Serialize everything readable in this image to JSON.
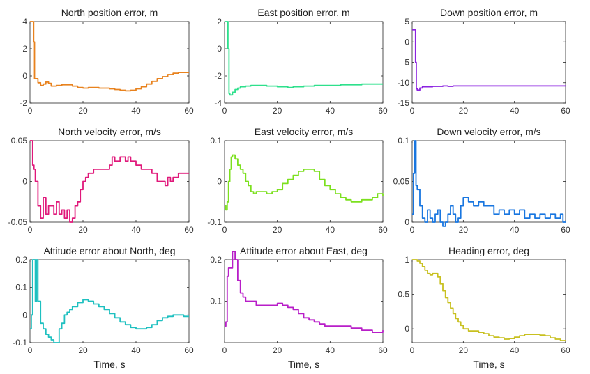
{
  "chart_data": [
    {
      "type": "line",
      "title": "North position error, m",
      "xlabel": "",
      "xlim": [
        0,
        60
      ],
      "ylim": [
        -2,
        4
      ],
      "xticks": [
        "0",
        "20",
        "40",
        "60"
      ],
      "yticks": [
        "-2",
        "0",
        "2",
        "4"
      ],
      "color": "#E8821E",
      "series": [
        {
          "name": "North position error",
          "x": [
            0,
            0.5,
            1,
            1.4,
            1.7,
            2,
            3,
            4,
            5,
            6,
            7,
            8,
            10,
            12,
            14,
            16,
            18,
            20,
            22,
            24,
            26,
            28,
            30,
            32,
            34,
            36,
            38,
            40,
            42,
            44,
            46,
            48,
            50,
            52,
            54,
            56,
            58,
            60
          ],
          "y": [
            4,
            4,
            4,
            2.5,
            -0.2,
            -0.2,
            -0.5,
            -0.7,
            -0.6,
            -0.45,
            -0.55,
            -0.75,
            -0.7,
            -0.65,
            -0.65,
            -0.75,
            -0.85,
            -0.9,
            -0.85,
            -0.85,
            -0.9,
            -0.9,
            -0.95,
            -1.0,
            -1.05,
            -1.1,
            -1.05,
            -0.95,
            -0.8,
            -0.6,
            -0.4,
            -0.2,
            -0.05,
            0.1,
            0.2,
            0.25,
            0.25,
            0.25
          ]
        }
      ]
    },
    {
      "type": "line",
      "title": "East position error, m",
      "xlabel": "",
      "xlim": [
        0,
        60
      ],
      "ylim": [
        -4,
        2
      ],
      "xticks": [
        "0",
        "20",
        "40",
        "60"
      ],
      "yticks": [
        "-4",
        "-2",
        "0",
        "2"
      ],
      "color": "#2EE08C",
      "series": [
        {
          "name": "East position error",
          "x": [
            0,
            0.5,
            1,
            1.3,
            1.7,
            2,
            3,
            4,
            5,
            6,
            8,
            10,
            12,
            14,
            16,
            18,
            20,
            22,
            24,
            26,
            28,
            30,
            32,
            34,
            36,
            38,
            40,
            42,
            44,
            46,
            48,
            50,
            52,
            54,
            56,
            58,
            60
          ],
          "y": [
            2,
            2,
            2,
            0,
            -3.3,
            -3.4,
            -3.2,
            -3.0,
            -2.9,
            -2.8,
            -2.75,
            -2.7,
            -2.7,
            -2.7,
            -2.75,
            -2.75,
            -2.8,
            -2.8,
            -2.85,
            -2.8,
            -2.8,
            -2.75,
            -2.75,
            -2.7,
            -2.7,
            -2.7,
            -2.7,
            -2.7,
            -2.65,
            -2.65,
            -2.65,
            -2.65,
            -2.6,
            -2.6,
            -2.6,
            -2.6,
            -2.6
          ]
        }
      ]
    },
    {
      "type": "line",
      "title": "Down position error, m",
      "xlabel": "",
      "xlim": [
        0,
        60
      ],
      "ylim": [
        -15,
        5
      ],
      "xticks": [
        "0",
        "20",
        "40",
        "60"
      ],
      "yticks": [
        "-15",
        "-10",
        "-5",
        "0",
        "5"
      ],
      "color": "#8B22E0",
      "series": [
        {
          "name": "Down position error",
          "x": [
            0,
            0.5,
            1,
            1.3,
            1.6,
            2,
            3,
            4,
            6,
            8,
            10,
            12,
            14,
            16,
            18,
            20,
            22,
            24,
            26,
            28,
            30,
            32,
            34,
            36,
            38,
            40,
            42,
            44,
            46,
            48,
            50,
            52,
            54,
            56,
            58,
            60
          ],
          "y": [
            3,
            3,
            3,
            -5,
            -11.5,
            -11.8,
            -11.3,
            -11.0,
            -11.0,
            -10.9,
            -10.9,
            -10.8,
            -10.9,
            -10.8,
            -10.8,
            -10.8,
            -10.8,
            -10.8,
            -10.8,
            -10.8,
            -10.8,
            -10.8,
            -10.8,
            -10.8,
            -10.8,
            -10.8,
            -10.8,
            -10.8,
            -10.8,
            -10.8,
            -10.8,
            -10.8,
            -10.8,
            -10.8,
            -10.8,
            -10.8
          ]
        }
      ]
    },
    {
      "type": "line",
      "title": "North velocity error, m/s",
      "xlabel": "",
      "xlim": [
        0,
        60
      ],
      "ylim": [
        -0.05,
        0.05
      ],
      "xticks": [
        "0",
        "20",
        "40",
        "60"
      ],
      "yticks": [
        "-0.05",
        "0",
        "0.05"
      ],
      "color": "#E0187A",
      "series": [
        {
          "name": "North velocity error",
          "x": [
            0,
            0.5,
            1,
            1.5,
            2,
            3,
            4,
            5,
            6,
            7,
            8,
            9,
            10,
            11,
            12,
            13,
            14,
            15,
            16,
            17,
            18,
            19,
            20,
            21,
            22,
            23,
            24,
            26,
            28,
            30,
            31,
            32,
            33,
            34,
            35,
            36,
            37,
            38,
            40,
            42,
            44,
            46,
            48,
            50,
            51,
            52,
            53,
            54,
            56,
            58,
            60
          ],
          "y": [
            0.05,
            0.05,
            0.02,
            0.015,
            0.0,
            -0.03,
            -0.045,
            -0.02,
            -0.04,
            -0.03,
            -0.03,
            -0.04,
            -0.025,
            -0.04,
            -0.035,
            -0.045,
            -0.035,
            -0.05,
            -0.045,
            -0.03,
            -0.025,
            -0.01,
            0.0,
            0.005,
            0.01,
            0.01,
            0.015,
            0.015,
            0.015,
            0.02,
            0.03,
            0.025,
            0.025,
            0.03,
            0.03,
            0.025,
            0.03,
            0.025,
            0.02,
            0.015,
            0.015,
            0.01,
            0.0,
            0.0,
            -0.005,
            0.005,
            0.0,
            0.005,
            0.01,
            0.01,
            0.01
          ]
        }
      ]
    },
    {
      "type": "line",
      "title": "East velocity error, m/s",
      "xlabel": "",
      "xlim": [
        0,
        60
      ],
      "ylim": [
        -0.1,
        0.1
      ],
      "xticks": [
        "0",
        "20",
        "40",
        "60"
      ],
      "yticks": [
        "-0.1",
        "0",
        "0.1"
      ],
      "color": "#7CE01E",
      "series": [
        {
          "name": "East velocity error",
          "x": [
            0,
            0.5,
            1,
            1.5,
            2,
            2.5,
            3,
            4,
            5,
            6,
            7,
            8,
            9,
            10,
            11,
            12,
            14,
            16,
            18,
            20,
            22,
            24,
            26,
            28,
            30,
            32,
            34,
            36,
            38,
            40,
            42,
            44,
            46,
            48,
            50,
            52,
            54,
            56,
            58,
            60
          ],
          "y": [
            -0.06,
            -0.07,
            -0.05,
            0.0,
            0.03,
            0.06,
            0.065,
            0.055,
            0.04,
            0.03,
            0.02,
            0.0,
            -0.01,
            -0.025,
            -0.03,
            -0.025,
            -0.025,
            -0.03,
            -0.025,
            -0.02,
            -0.005,
            0.005,
            0.015,
            0.025,
            0.03,
            0.03,
            0.025,
            0.005,
            -0.01,
            -0.02,
            -0.03,
            -0.04,
            -0.045,
            -0.05,
            -0.05,
            -0.045,
            -0.045,
            -0.04,
            -0.03,
            -0.035
          ]
        }
      ]
    },
    {
      "type": "line",
      "title": "Down velocity error, m/s",
      "xlabel": "",
      "xlim": [
        0,
        60
      ],
      "ylim": [
        0,
        0.1
      ],
      "xticks": [
        "0",
        "20",
        "40",
        "60"
      ],
      "yticks": [
        "0",
        "0.05",
        "0.1"
      ],
      "color": "#1876E0",
      "series": [
        {
          "name": "Down velocity error",
          "x": [
            0,
            0.5,
            1,
            1.5,
            2,
            3,
            4,
            5,
            6,
            7,
            8,
            9,
            10,
            11,
            12,
            13,
            14,
            15,
            16,
            17,
            18,
            19,
            20,
            22,
            24,
            26,
            28,
            30,
            32,
            34,
            36,
            38,
            40,
            42,
            44,
            46,
            48,
            50,
            52,
            54,
            56,
            58,
            59,
            60
          ],
          "y": [
            0.01,
            0.06,
            0.1,
            0.045,
            0.04,
            0.02,
            0.005,
            0.0,
            0.015,
            0.005,
            0.0,
            0.01,
            0.015,
            0.0,
            -0.005,
            0.0,
            0.01,
            0.02,
            0.01,
            0.0,
            0.005,
            0.02,
            0.03,
            0.025,
            0.02,
            0.025,
            0.02,
            0.02,
            0.01,
            0.015,
            0.01,
            0.015,
            0.01,
            0.015,
            0.005,
            0.01,
            0.005,
            0.01,
            0.005,
            0.01,
            0.005,
            0.01,
            0.0,
            0.0
          ]
        }
      ]
    },
    {
      "type": "line",
      "title": "Attitude error about North, deg",
      "xlabel": "Time, s",
      "xlim": [
        0,
        60
      ],
      "ylim": [
        -0.1,
        0.2
      ],
      "xticks": [
        "0",
        "20",
        "40",
        "60"
      ],
      "yticks": [
        "-0.1",
        "0",
        "0.1",
        "0.2"
      ],
      "color": "#1EC0C0",
      "series": [
        {
          "name": "Attitude error about North",
          "x": [
            0,
            0.5,
            1,
            1.5,
            2,
            2.5,
            3,
            4,
            5,
            6,
            7,
            8,
            9,
            10,
            11,
            12,
            13,
            14,
            15,
            16,
            18,
            20,
            22,
            24,
            26,
            28,
            30,
            32,
            34,
            36,
            38,
            40,
            42,
            44,
            46,
            48,
            50,
            52,
            54,
            56,
            58,
            60
          ],
          "y": [
            -0.05,
            0.0,
            0.2,
            0.2,
            0.05,
            0.2,
            0.05,
            -0.03,
            -0.05,
            -0.07,
            -0.08,
            -0.09,
            -0.1,
            -0.1,
            -0.05,
            -0.03,
            0.0,
            0.01,
            0.02,
            0.03,
            0.045,
            0.055,
            0.05,
            0.04,
            0.03,
            0.02,
            0.005,
            -0.01,
            -0.025,
            -0.035,
            -0.045,
            -0.05,
            -0.05,
            -0.045,
            -0.035,
            -0.02,
            -0.01,
            -0.005,
            0.0,
            0.0,
            -0.005,
            -0.005
          ]
        }
      ]
    },
    {
      "type": "line",
      "title": "Attitude error about East, deg",
      "xlabel": "Time, s",
      "xlim": [
        0,
        60
      ],
      "ylim": [
        0,
        0.2
      ],
      "xticks": [
        "0",
        "20",
        "40",
        "60"
      ],
      "yticks": [
        "0.1",
        "0.2"
      ],
      "color": "#B81EC8",
      "series": [
        {
          "name": "Attitude error about East",
          "x": [
            0,
            0.5,
            1,
            1.5,
            2,
            3,
            4,
            5,
            6,
            7,
            8,
            10,
            12,
            14,
            16,
            18,
            20,
            22,
            24,
            26,
            28,
            30,
            32,
            34,
            36,
            38,
            40,
            42,
            44,
            46,
            48,
            50,
            52,
            54,
            56,
            58,
            60
          ],
          "y": [
            0.04,
            0.05,
            0.16,
            0.18,
            0.18,
            0.22,
            0.2,
            0.15,
            0.12,
            0.11,
            0.1,
            0.1,
            0.09,
            0.09,
            0.09,
            0.09,
            0.095,
            0.09,
            0.085,
            0.08,
            0.07,
            0.06,
            0.055,
            0.05,
            0.045,
            0.04,
            0.04,
            0.04,
            0.04,
            0.04,
            0.035,
            0.035,
            0.03,
            0.03,
            0.025,
            0.025,
            0.03
          ]
        }
      ]
    },
    {
      "type": "line",
      "title": "Heading error, deg",
      "xlabel": "Time, s",
      "xlim": [
        0,
        60
      ],
      "ylim": [
        -0.2,
        1
      ],
      "xticks": [
        "0",
        "20",
        "40",
        "60"
      ],
      "yticks": [
        "0",
        "0.5",
        "1"
      ],
      "color": "#C8C020",
      "series": [
        {
          "name": "Heading error",
          "x": [
            0,
            1,
            2,
            3,
            4,
            5,
            6,
            7,
            8,
            9,
            10,
            11,
            12,
            13,
            14,
            15,
            16,
            17,
            18,
            19,
            20,
            22,
            24,
            26,
            28,
            30,
            32,
            34,
            36,
            38,
            40,
            42,
            44,
            46,
            48,
            50,
            52,
            54,
            56,
            58,
            60
          ],
          "y": [
            1.0,
            1.0,
            0.98,
            0.95,
            0.9,
            0.85,
            0.8,
            0.78,
            0.8,
            0.8,
            0.75,
            0.65,
            0.55,
            0.45,
            0.38,
            0.3,
            0.22,
            0.15,
            0.1,
            0.05,
            0.0,
            -0.03,
            -0.03,
            -0.05,
            -0.07,
            -0.1,
            -0.12,
            -0.13,
            -0.15,
            -0.14,
            -0.12,
            -0.1,
            -0.08,
            -0.08,
            -0.08,
            -0.09,
            -0.1,
            -0.13,
            -0.15,
            -0.17,
            -0.18
          ]
        }
      ]
    }
  ]
}
